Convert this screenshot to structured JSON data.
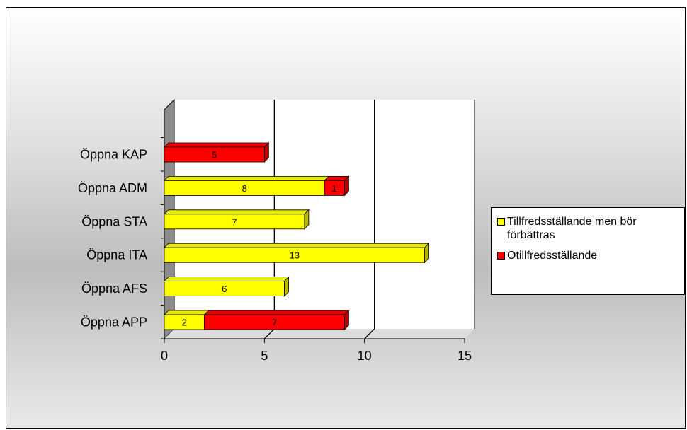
{
  "chart_data": {
    "type": "bar",
    "orientation": "horizontal",
    "stacked": true,
    "three_d": true,
    "categories": [
      "Öppna KAP",
      "Öppna ADM",
      "Öppna STA",
      "Öppna ITA",
      "Öppna AFS",
      "Öppna APP"
    ],
    "series": [
      {
        "name": "Tillfredsställande men bör förbättras",
        "color": "#ffff00",
        "values": [
          null,
          8,
          7,
          13,
          6,
          2
        ]
      },
      {
        "name": "Otillfredsställande",
        "color": "#ff0000",
        "values": [
          5,
          1,
          null,
          null,
          null,
          7
        ]
      }
    ],
    "x_ticks": [
      "0",
      "5",
      "10",
      "15"
    ],
    "xlim": [
      0,
      15
    ],
    "grid": "vertical lines at 5 and 10",
    "legend_position": "right"
  }
}
